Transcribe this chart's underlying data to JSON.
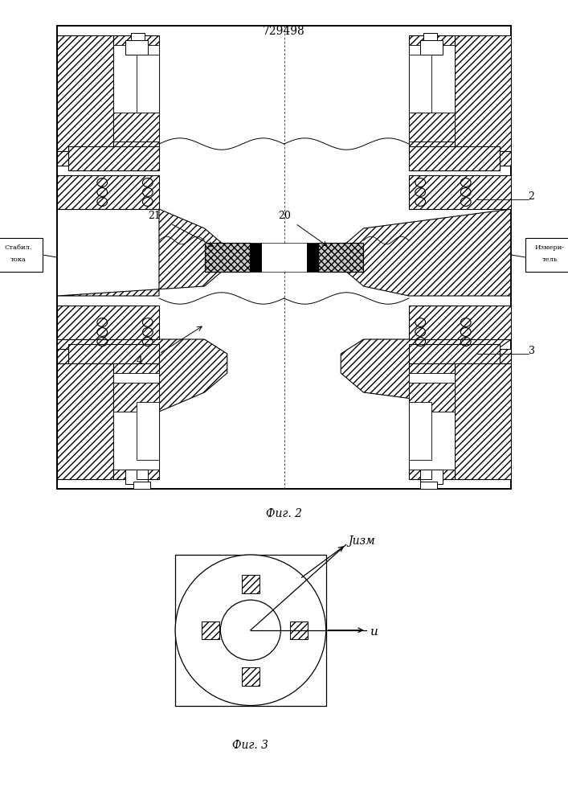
{
  "title": "729498",
  "fig2_caption": "Фиг. 2",
  "fig3_caption": "Фиг. 3",
  "left_label_line1": "Стабил.",
  "left_label_line2": "тока",
  "right_label_line1": "Измери-",
  "right_label_line2": "тель",
  "label_2": "2",
  "label_3": "3",
  "label_4": "4",
  "label_20": "20",
  "label_21": "21",
  "fig3_label_x": "u",
  "fig3_label_y": "Jизм",
  "bg_color": "#ffffff"
}
